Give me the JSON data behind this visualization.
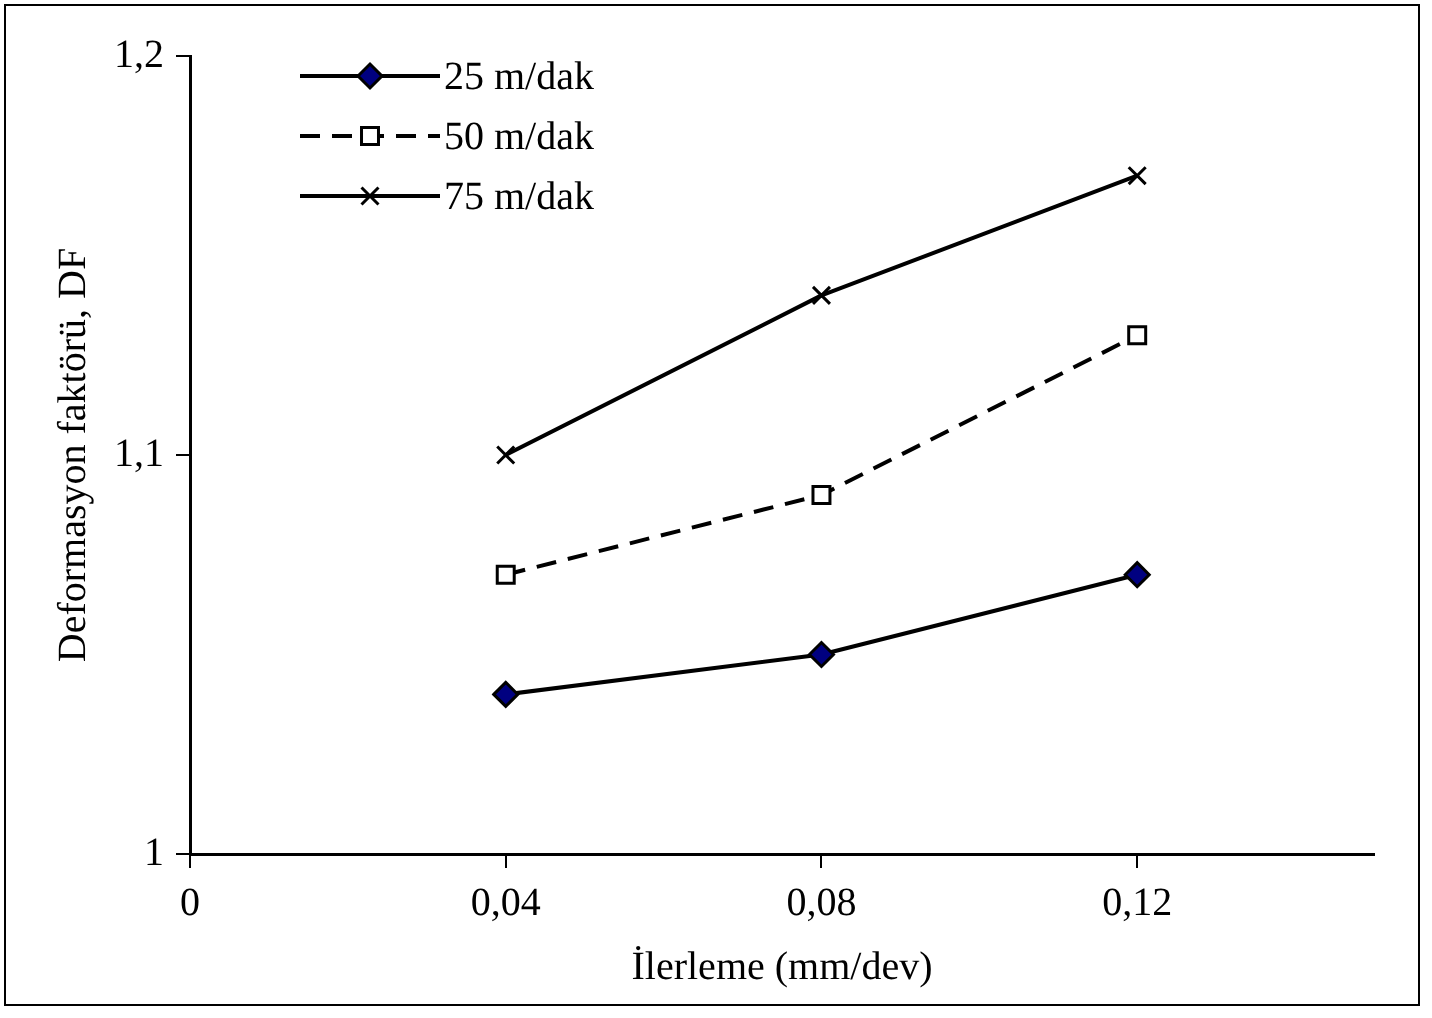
{
  "chart_data": {
    "type": "line",
    "xlabel": "İlerleme (mm/dev)",
    "ylabel": "Deformasyon faktörü, DF",
    "x": [
      0.04,
      0.08,
      0.12
    ],
    "series": [
      {
        "name": "25 m/dak",
        "color": "#000000",
        "values": [
          1.04,
          1.05,
          1.07
        ],
        "marker": "diamond",
        "line_style": "solid"
      },
      {
        "name": "50 m/dak",
        "color": "#000000",
        "values": [
          1.07,
          1.09,
          1.13
        ],
        "marker": "square",
        "line_style": "dashed"
      },
      {
        "name": "75 m/dak",
        "color": "#000000",
        "values": [
          1.1,
          1.14,
          1.17
        ],
        "marker": "cross",
        "line_style": "solid"
      }
    ],
    "xlim": [
      0,
      0.15
    ],
    "xticks": [
      0,
      {
        "value": 0.04,
        "label": "0,04"
      },
      {
        "value": 0.08,
        "label": "0,08"
      },
      {
        "value": 0.12,
        "label": "0,12"
      }
    ],
    "ylim": [
      1,
      1.2
    ],
    "yticks": [
      1,
      {
        "value": 1.1,
        "label": "1,1"
      },
      {
        "value": 1.2,
        "label": "1,2"
      }
    ],
    "grid": false,
    "legend": "top left"
  }
}
